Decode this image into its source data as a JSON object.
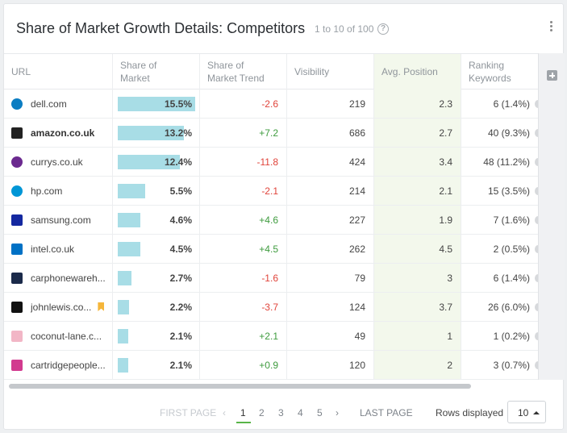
{
  "header": {
    "title": "Share of Market Growth Details: Competitors",
    "count": "1 to 10 of 100",
    "help": "?"
  },
  "columns": {
    "url": "URL",
    "share_l1": "Share of",
    "share_l2": "Market",
    "trend_l1": "Share of",
    "trend_l2": "Market Trend",
    "visibility": "Visibility",
    "position": "Avg. Position",
    "kw_l1": "Ranking",
    "kw_l2": "Keywords"
  },
  "rows": [
    {
      "domain": "dell.com",
      "bold": false,
      "share": "15.5%",
      "share_value": 15.5,
      "trend": "-2.6",
      "visibility": "219",
      "position": "2.3",
      "keywords": "6 (1.4%)",
      "icon": "dell-favicon",
      "icon_color": "#0b7dc2"
    },
    {
      "domain": "amazon.co.uk",
      "bold": true,
      "share": "13.2%",
      "share_value": 13.2,
      "trend": "+7.2",
      "visibility": "686",
      "position": "2.7",
      "keywords": "40 (9.3%)",
      "icon": "amazon-favicon",
      "icon_color": "#222222"
    },
    {
      "domain": "currys.co.uk",
      "bold": false,
      "share": "12.4%",
      "share_value": 12.4,
      "trend": "-11.8",
      "visibility": "424",
      "position": "3.4",
      "keywords": "48 (11.2%)",
      "icon": "currys-favicon",
      "icon_color": "#6b2a8f"
    },
    {
      "domain": "hp.com",
      "bold": false,
      "share": "5.5%",
      "share_value": 5.5,
      "trend": "-2.1",
      "visibility": "214",
      "position": "2.1",
      "keywords": "15 (3.5%)",
      "icon": "hp-favicon",
      "icon_color": "#0096d6"
    },
    {
      "domain": "samsung.com",
      "bold": false,
      "share": "4.6%",
      "share_value": 4.6,
      "trend": "+4.6",
      "visibility": "227",
      "position": "1.9",
      "keywords": "7 (1.6%)",
      "icon": "samsung-favicon",
      "icon_color": "#1428a0"
    },
    {
      "domain": "intel.co.uk",
      "bold": false,
      "share": "4.5%",
      "share_value": 4.5,
      "trend": "+4.5",
      "visibility": "262",
      "position": "4.5",
      "keywords": "2 (0.5%)",
      "icon": "intel-favicon",
      "icon_color": "#0071c5"
    },
    {
      "domain": "carphonewareh...",
      "bold": false,
      "share": "2.7%",
      "share_value": 2.7,
      "trend": "-1.6",
      "visibility": "79",
      "position": "3",
      "keywords": "6 (1.4%)",
      "icon": "carphonewarehouse-favicon",
      "icon_color": "#1b2a4a"
    },
    {
      "domain": "johnlewis.co...",
      "bold": false,
      "share": "2.2%",
      "share_value": 2.2,
      "trend": "-3.7",
      "visibility": "124",
      "position": "3.7",
      "keywords": "26 (6.0%)",
      "icon": "johnlewis-favicon",
      "icon_color": "#111111",
      "bookmark": true
    },
    {
      "domain": "coconut-lane.c...",
      "bold": false,
      "share": "2.1%",
      "share_value": 2.1,
      "trend": "+2.1",
      "visibility": "49",
      "position": "1",
      "keywords": "1 (0.2%)",
      "icon": "coconut-lane-favicon",
      "icon_color": "#f2b6c6"
    },
    {
      "domain": "cartridgepeople...",
      "bold": false,
      "share": "2.1%",
      "share_value": 2.1,
      "trend": "+0.9",
      "visibility": "120",
      "position": "2",
      "keywords": "3 (0.7%)",
      "icon": "cartridgepeople-favicon",
      "icon_color": "#d23a8f"
    }
  ],
  "pager": {
    "first": "FIRST PAGE",
    "prev": "‹",
    "pages": [
      "1",
      "2",
      "3",
      "4",
      "5"
    ],
    "next": "›",
    "last": "LAST PAGE",
    "rows_label": "Rows displayed",
    "rows_value": "10"
  },
  "colors": {
    "bar": "#a8dde6",
    "positive": "#3e9b3e",
    "negative": "#e0433a",
    "position_bg": "#f3f8ec",
    "active_page": "#58b548"
  }
}
